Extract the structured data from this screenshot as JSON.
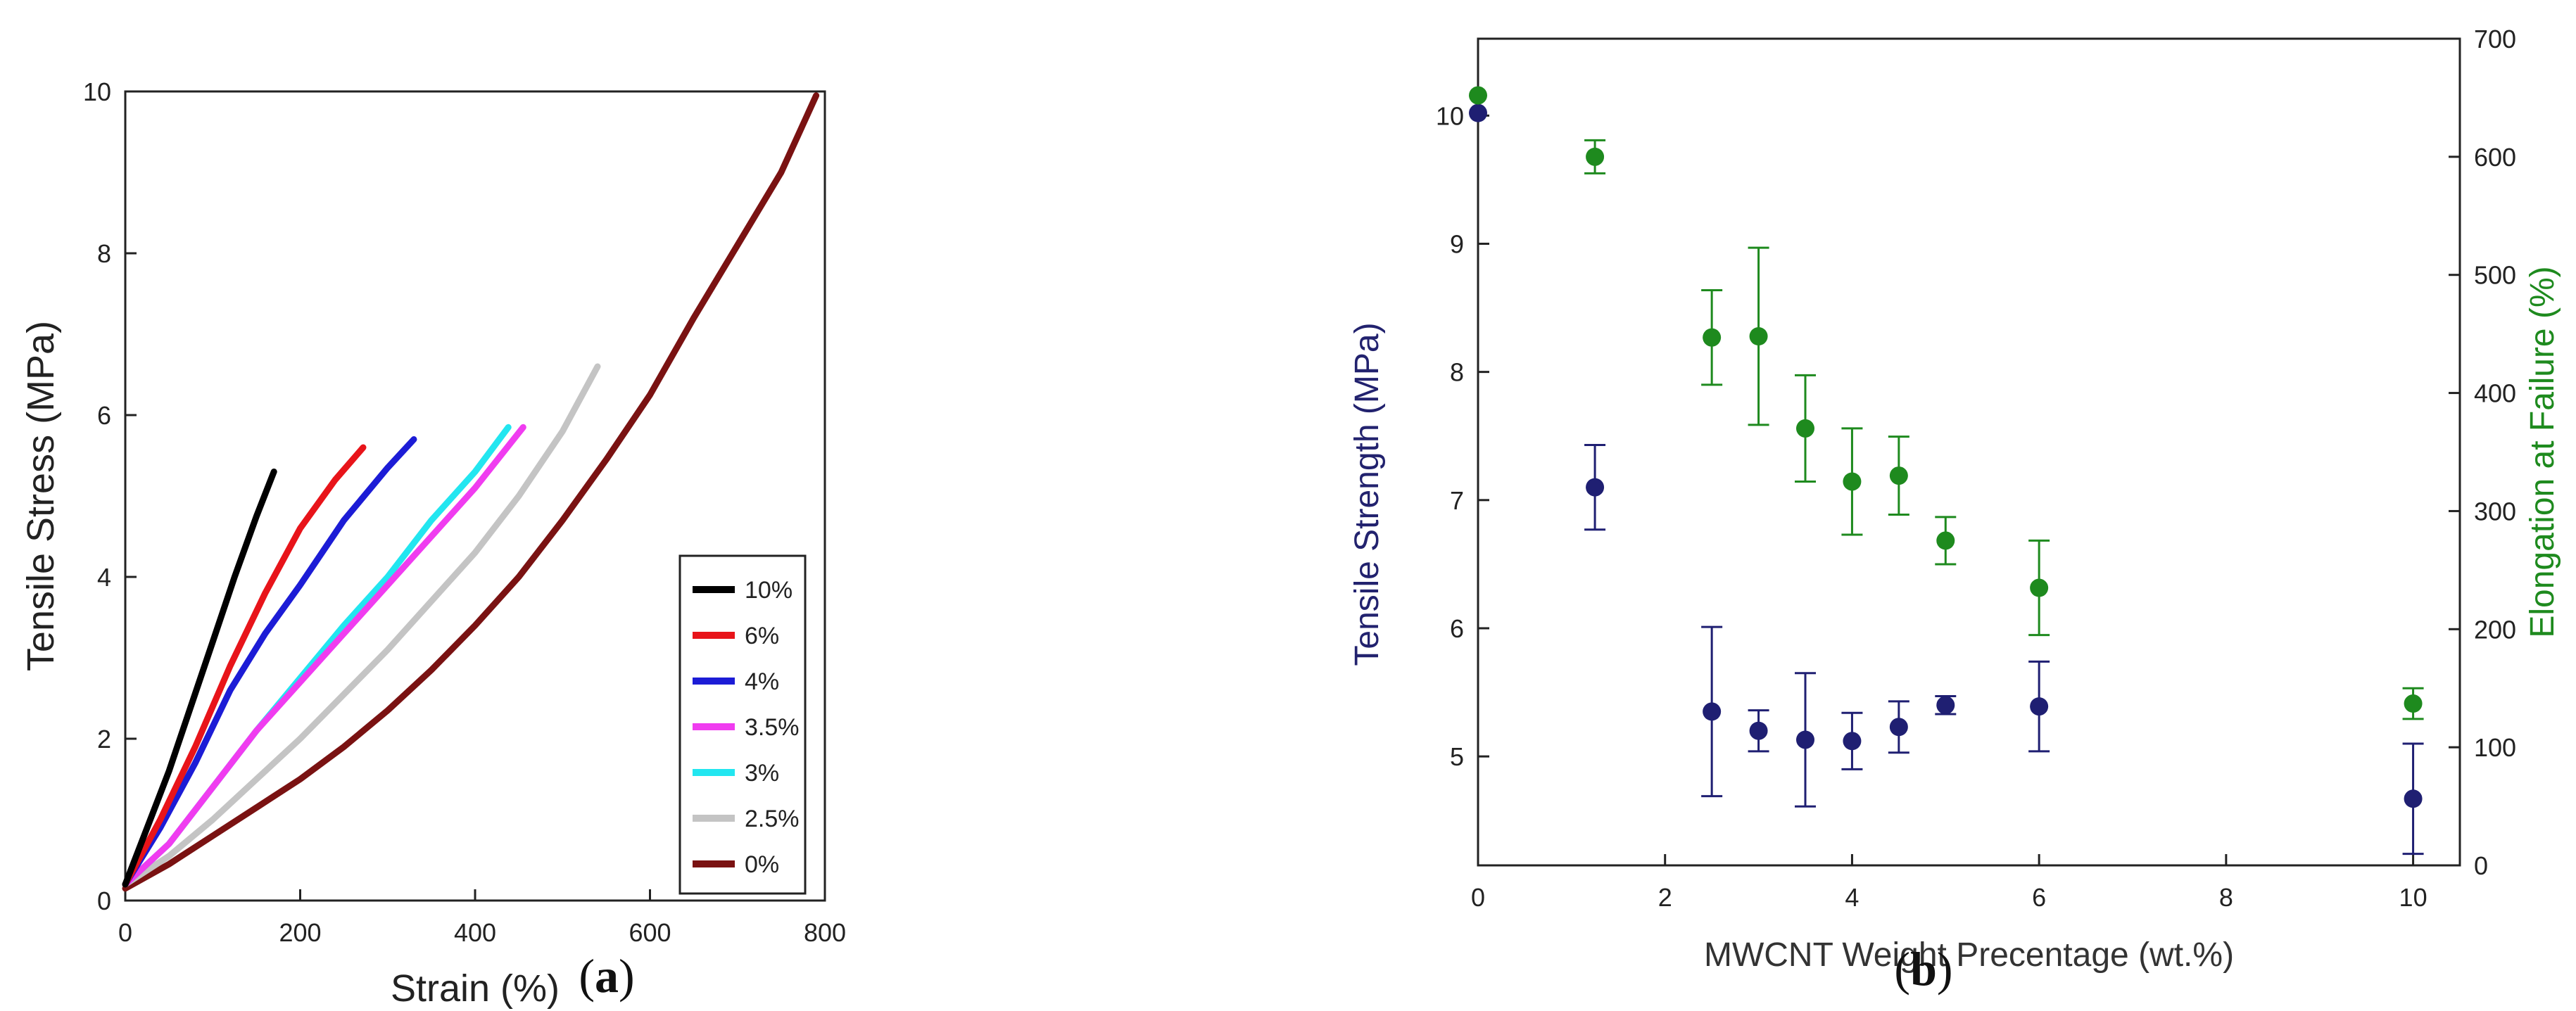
{
  "figure": {
    "panels": [
      {
        "label_open": "(",
        "label_letter": "a",
        "label_close": ")"
      },
      {
        "label_open": "(",
        "label_letter": "b",
        "label_close": ")"
      }
    ]
  },
  "chart_data": [
    {
      "type": "line",
      "title": "",
      "xlabel": "Strain (%)",
      "ylabel": "Tensile Stress (MPa)",
      "xlim": [
        0,
        800
      ],
      "ylim": [
        0,
        10
      ],
      "xticks": [
        "0",
        "200",
        "400",
        "600",
        "800"
      ],
      "yticks": [
        "0",
        "2",
        "4",
        "6",
        "8",
        "10"
      ],
      "grid": false,
      "legend": "center-right",
      "series": [
        {
          "name": "10%",
          "color": "#000000",
          "points": [
            [
              0,
              0.2
            ],
            [
              25,
              0.9
            ],
            [
              50,
              1.6
            ],
            [
              75,
              2.4
            ],
            [
              100,
              3.2
            ],
            [
              125,
              4.0
            ],
            [
              150,
              4.75
            ],
            [
              170,
              5.3
            ]
          ]
        },
        {
          "name": "6%",
          "color": "#e8141a",
          "points": [
            [
              0,
              0.2
            ],
            [
              40,
              1.0
            ],
            [
              80,
              1.9
            ],
            [
              120,
              2.9
            ],
            [
              160,
              3.8
            ],
            [
              200,
              4.6
            ],
            [
              240,
              5.2
            ],
            [
              272,
              5.6
            ]
          ]
        },
        {
          "name": "4%",
          "color": "#1c1cd6",
          "points": [
            [
              0,
              0.2
            ],
            [
              40,
              0.9
            ],
            [
              80,
              1.7
            ],
            [
              120,
              2.6
            ],
            [
              160,
              3.3
            ],
            [
              200,
              3.9
            ],
            [
              250,
              4.7
            ],
            [
              300,
              5.35
            ],
            [
              330,
              5.7
            ]
          ]
        },
        {
          "name": "3.5%",
          "color": "#f03cf0",
          "points": [
            [
              0,
              0.2
            ],
            [
              50,
              0.7
            ],
            [
              100,
              1.4
            ],
            [
              150,
              2.1
            ],
            [
              200,
              2.7
            ],
            [
              250,
              3.3
            ],
            [
              300,
              3.9
            ],
            [
              350,
              4.5
            ],
            [
              400,
              5.1
            ],
            [
              455,
              5.85
            ]
          ]
        },
        {
          "name": "3%",
          "color": "#22e6f0",
          "points": [
            [
              0,
              0.2
            ],
            [
              50,
              0.7
            ],
            [
              100,
              1.4
            ],
            [
              150,
              2.1
            ],
            [
              200,
              2.75
            ],
            [
              250,
              3.4
            ],
            [
              300,
              4.0
            ],
            [
              350,
              4.7
            ],
            [
              400,
              5.3
            ],
            [
              438,
              5.85
            ]
          ]
        },
        {
          "name": "2.5%",
          "color": "#c4c4c4",
          "points": [
            [
              0,
              0.2
            ],
            [
              50,
              0.55
            ],
            [
              100,
              1.0
            ],
            [
              150,
              1.5
            ],
            [
              200,
              2.0
            ],
            [
              250,
              2.55
            ],
            [
              300,
              3.1
            ],
            [
              350,
              3.7
            ],
            [
              400,
              4.3
            ],
            [
              450,
              5.0
            ],
            [
              500,
              5.8
            ],
            [
              540,
              6.6
            ]
          ]
        },
        {
          "name": "0%",
          "color": "#7a1212",
          "points": [
            [
              0,
              0.15
            ],
            [
              50,
              0.45
            ],
            [
              100,
              0.8
            ],
            [
              150,
              1.15
            ],
            [
              200,
              1.5
            ],
            [
              250,
              1.9
            ],
            [
              300,
              2.35
            ],
            [
              350,
              2.85
            ],
            [
              400,
              3.4
            ],
            [
              450,
              4.0
            ],
            [
              500,
              4.7
            ],
            [
              550,
              5.45
            ],
            [
              600,
              6.25
            ],
            [
              650,
              7.2
            ],
            [
              700,
              8.1
            ],
            [
              750,
              9.0
            ],
            [
              790,
              9.95
            ]
          ]
        }
      ]
    },
    {
      "type": "scatter",
      "title": "",
      "xlabel": "MWCNT Weight Precentage (wt.%)",
      "ylabel": "Tensile Strength (MPa)",
      "y2label": "Elongation at Failure (%)",
      "xlim": [
        0,
        10.5
      ],
      "ylim": [
        4.15,
        10.6
      ],
      "y2lim": [
        0,
        700
      ],
      "xticks": [
        "0",
        "2",
        "4",
        "6",
        "8",
        "10"
      ],
      "yticks": [
        "5",
        "6",
        "7",
        "8",
        "9",
        "10"
      ],
      "y2ticks": [
        "0",
        "100",
        "200",
        "300",
        "400",
        "500",
        "600",
        "700"
      ],
      "grid": false,
      "series": [
        {
          "name": "",
          "axis": "left",
          "color": "#1f1f72",
          "points": [
            {
              "x": 0,
              "y": 10.02,
              "err": 0
            },
            {
              "x": 1.25,
              "y": 7.1,
              "err": 0.33
            },
            {
              "x": 2.5,
              "y": 5.35,
              "err": 0.66
            },
            {
              "x": 3.0,
              "y": 5.2,
              "err": 0.16
            },
            {
              "x": 3.5,
              "y": 5.13,
              "err": 0.52
            },
            {
              "x": 4.0,
              "y": 5.12,
              "err": 0.22
            },
            {
              "x": 4.5,
              "y": 5.23,
              "err": 0.2
            },
            {
              "x": 5.0,
              "y": 5.4,
              "err": 0.07
            },
            {
              "x": 6.0,
              "y": 5.39,
              "err": 0.35
            },
            {
              "x": 10.0,
              "y": 4.67,
              "err": 0.43
            }
          ]
        },
        {
          "name": "",
          "axis": "right",
          "color": "#1e8a1e",
          "points": [
            {
              "x": 0,
              "y": 652,
              "err": 0
            },
            {
              "x": 1.25,
              "y": 600,
              "err": 14
            },
            {
              "x": 2.5,
              "y": 447,
              "err": 40
            },
            {
              "x": 3.0,
              "y": 448,
              "err": 75
            },
            {
              "x": 3.5,
              "y": 370,
              "err": 45
            },
            {
              "x": 4.0,
              "y": 325,
              "err": 45
            },
            {
              "x": 4.5,
              "y": 330,
              "err": 33
            },
            {
              "x": 5.0,
              "y": 275,
              "err": 20
            },
            {
              "x": 6.0,
              "y": 235,
              "err": 40
            },
            {
              "x": 10.0,
              "y": 137,
              "err": 13
            }
          ]
        }
      ]
    }
  ]
}
